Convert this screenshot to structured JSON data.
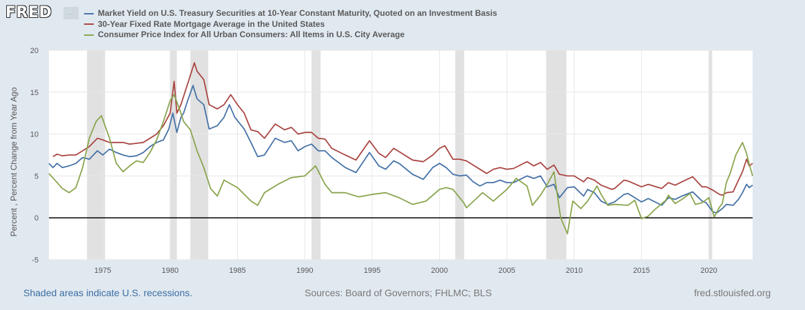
{
  "brand": {
    "logo_text": "FRED"
  },
  "colors": {
    "treasury": "#4572a7",
    "mortgage": "#aa4643",
    "cpi": "#89a54e",
    "recession": "#e1e1e1",
    "background": "#e1e9f0"
  },
  "footer": {
    "recessions_note": "Shaded areas indicate U.S. recessions.",
    "sources": "Sources: Board of Governors; FHLMC; BLS",
    "site": "fred.stlouisfed.org"
  },
  "chart_data": {
    "type": "line",
    "title": "",
    "xlabel": "",
    "ylabel": "Percent , Percent Change from Year Ago",
    "xlim": [
      1971.0,
      2023.25
    ],
    "ylim": [
      -5,
      20
    ],
    "yticks": [
      -5,
      0,
      5,
      10,
      15,
      20
    ],
    "xticks": [
      1975,
      1980,
      1985,
      1990,
      1995,
      2000,
      2005,
      2010,
      2015,
      2020
    ],
    "grid": true,
    "legend_position": "top-left",
    "recessions": [
      [
        1973.83,
        1975.17
      ],
      [
        1980.0,
        1980.5
      ],
      [
        1981.5,
        1982.83
      ],
      [
        1990.5,
        1991.17
      ],
      [
        2001.17,
        2001.83
      ],
      [
        2007.92,
        2009.42
      ],
      [
        2020.0,
        2020.25
      ]
    ],
    "series": [
      {
        "name": "Market Yield on U.S. Treasury Securities at 10-Year Constant Maturity, Quoted on an Investment Basis",
        "color_key": "treasury",
        "points": [
          [
            1971.0,
            6.5
          ],
          [
            1971.3,
            6.0
          ],
          [
            1971.6,
            6.5
          ],
          [
            1972.0,
            6.0
          ],
          [
            1972.5,
            6.2
          ],
          [
            1973.0,
            6.5
          ],
          [
            1973.5,
            7.2
          ],
          [
            1974.0,
            7.0
          ],
          [
            1974.6,
            8.0
          ],
          [
            1975.0,
            7.5
          ],
          [
            1975.5,
            8.2
          ],
          [
            1976.0,
            7.8
          ],
          [
            1976.5,
            7.5
          ],
          [
            1977.0,
            7.3
          ],
          [
            1977.5,
            7.4
          ],
          [
            1978.0,
            7.8
          ],
          [
            1978.5,
            8.5
          ],
          [
            1979.0,
            9.0
          ],
          [
            1979.5,
            9.3
          ],
          [
            1979.9,
            10.6
          ],
          [
            1980.2,
            12.5
          ],
          [
            1980.5,
            10.2
          ],
          [
            1980.8,
            12.0
          ],
          [
            1981.0,
            12.5
          ],
          [
            1981.3,
            14.0
          ],
          [
            1981.7,
            15.8
          ],
          [
            1982.0,
            14.2
          ],
          [
            1982.5,
            13.5
          ],
          [
            1982.9,
            10.6
          ],
          [
            1983.5,
            11.0
          ],
          [
            1984.0,
            12.0
          ],
          [
            1984.4,
            13.5
          ],
          [
            1984.8,
            12.0
          ],
          [
            1985.5,
            10.6
          ],
          [
            1986.0,
            9.0
          ],
          [
            1986.5,
            7.3
          ],
          [
            1987.0,
            7.5
          ],
          [
            1987.8,
            9.5
          ],
          [
            1988.5,
            9.0
          ],
          [
            1989.0,
            9.2
          ],
          [
            1989.5,
            8.0
          ],
          [
            1990.0,
            8.5
          ],
          [
            1990.5,
            8.8
          ],
          [
            1991.0,
            8.0
          ],
          [
            1991.5,
            8.0
          ],
          [
            1992.0,
            7.2
          ],
          [
            1993.0,
            6.0
          ],
          [
            1993.8,
            5.4
          ],
          [
            1994.8,
            7.8
          ],
          [
            1995.5,
            6.2
          ],
          [
            1996.0,
            5.8
          ],
          [
            1996.6,
            6.8
          ],
          [
            1997.0,
            6.5
          ],
          [
            1998.0,
            5.2
          ],
          [
            1998.8,
            4.6
          ],
          [
            1999.5,
            6.0
          ],
          [
            2000.0,
            6.5
          ],
          [
            2000.5,
            6.0
          ],
          [
            2001.0,
            5.2
          ],
          [
            2001.5,
            5.0
          ],
          [
            2002.0,
            5.1
          ],
          [
            2002.5,
            4.3
          ],
          [
            2003.0,
            3.8
          ],
          [
            2003.5,
            4.2
          ],
          [
            2004.0,
            4.2
          ],
          [
            2004.5,
            4.5
          ],
          [
            2005.0,
            4.2
          ],
          [
            2005.5,
            4.2
          ],
          [
            2006.5,
            5.0
          ],
          [
            2007.0,
            4.7
          ],
          [
            2007.5,
            5.0
          ],
          [
            2008.0,
            3.7
          ],
          [
            2008.5,
            4.0
          ],
          [
            2008.9,
            2.4
          ],
          [
            2009.5,
            3.6
          ],
          [
            2010.0,
            3.7
          ],
          [
            2010.7,
            2.6
          ],
          [
            2011.0,
            3.4
          ],
          [
            2011.5,
            3.0
          ],
          [
            2012.0,
            2.0
          ],
          [
            2012.5,
            1.6
          ],
          [
            2013.0,
            1.9
          ],
          [
            2013.7,
            2.8
          ],
          [
            2014.0,
            2.9
          ],
          [
            2015.0,
            1.9
          ],
          [
            2015.5,
            2.3
          ],
          [
            2016.5,
            1.5
          ],
          [
            2017.0,
            2.4
          ],
          [
            2017.5,
            2.2
          ],
          [
            2018.0,
            2.6
          ],
          [
            2018.8,
            3.1
          ],
          [
            2019.5,
            2.0
          ],
          [
            2019.8,
            1.8
          ],
          [
            2020.3,
            0.7
          ],
          [
            2020.6,
            0.6
          ],
          [
            2021.0,
            1.1
          ],
          [
            2021.3,
            1.6
          ],
          [
            2021.8,
            1.5
          ],
          [
            2022.2,
            2.2
          ],
          [
            2022.5,
            3.0
          ],
          [
            2022.8,
            4.0
          ],
          [
            2023.0,
            3.6
          ],
          [
            2023.25,
            3.9
          ]
        ]
      },
      {
        "name": "30-Year Fixed Rate Mortgage Average in the United States",
        "color_key": "mortgage",
        "points": [
          [
            1971.3,
            7.3
          ],
          [
            1971.6,
            7.6
          ],
          [
            1972.0,
            7.4
          ],
          [
            1972.5,
            7.5
          ],
          [
            1973.0,
            7.5
          ],
          [
            1973.5,
            8.0
          ],
          [
            1974.0,
            8.5
          ],
          [
            1974.6,
            9.5
          ],
          [
            1975.0,
            9.3
          ],
          [
            1975.5,
            9.0
          ],
          [
            1976.0,
            9.0
          ],
          [
            1976.5,
            9.0
          ],
          [
            1977.0,
            8.8
          ],
          [
            1977.5,
            8.9
          ],
          [
            1978.0,
            9.0
          ],
          [
            1978.5,
            9.5
          ],
          [
            1979.0,
            10.0
          ],
          [
            1979.5,
            11.0
          ],
          [
            1980.0,
            12.5
          ],
          [
            1980.3,
            16.3
          ],
          [
            1980.5,
            12.5
          ],
          [
            1980.8,
            13.5
          ],
          [
            1981.0,
            14.5
          ],
          [
            1981.4,
            16.5
          ],
          [
            1981.8,
            18.5
          ],
          [
            1982.0,
            17.5
          ],
          [
            1982.5,
            16.5
          ],
          [
            1982.9,
            13.5
          ],
          [
            1983.5,
            13.0
          ],
          [
            1984.0,
            13.5
          ],
          [
            1984.5,
            14.7
          ],
          [
            1985.0,
            13.5
          ],
          [
            1985.5,
            12.5
          ],
          [
            1986.0,
            10.5
          ],
          [
            1986.5,
            10.3
          ],
          [
            1987.0,
            9.5
          ],
          [
            1987.8,
            11.2
          ],
          [
            1988.5,
            10.5
          ],
          [
            1989.0,
            10.8
          ],
          [
            1989.5,
            10.0
          ],
          [
            1990.0,
            10.2
          ],
          [
            1990.5,
            10.2
          ],
          [
            1991.0,
            9.5
          ],
          [
            1991.5,
            9.4
          ],
          [
            1992.0,
            8.3
          ],
          [
            1993.0,
            7.5
          ],
          [
            1993.8,
            6.9
          ],
          [
            1994.8,
            9.2
          ],
          [
            1995.5,
            7.7
          ],
          [
            1996.0,
            7.2
          ],
          [
            1996.6,
            8.3
          ],
          [
            1997.0,
            7.9
          ],
          [
            1998.0,
            6.9
          ],
          [
            1998.8,
            6.7
          ],
          [
            1999.5,
            7.5
          ],
          [
            2000.0,
            8.3
          ],
          [
            2000.4,
            8.6
          ],
          [
            2001.0,
            7.0
          ],
          [
            2001.5,
            7.0
          ],
          [
            2002.0,
            6.8
          ],
          [
            2002.5,
            6.3
          ],
          [
            2003.0,
            5.8
          ],
          [
            2003.5,
            5.3
          ],
          [
            2004.0,
            5.8
          ],
          [
            2004.5,
            6.0
          ],
          [
            2005.0,
            5.8
          ],
          [
            2005.5,
            5.9
          ],
          [
            2006.5,
            6.7
          ],
          [
            2007.0,
            6.2
          ],
          [
            2007.5,
            6.6
          ],
          [
            2008.0,
            5.8
          ],
          [
            2008.5,
            6.3
          ],
          [
            2008.9,
            5.2
          ],
          [
            2009.5,
            5.0
          ],
          [
            2010.0,
            5.0
          ],
          [
            2010.7,
            4.3
          ],
          [
            2011.0,
            4.8
          ],
          [
            2011.5,
            4.5
          ],
          [
            2012.0,
            3.9
          ],
          [
            2012.8,
            3.4
          ],
          [
            2013.0,
            3.5
          ],
          [
            2013.7,
            4.5
          ],
          [
            2014.0,
            4.4
          ],
          [
            2015.0,
            3.7
          ],
          [
            2015.5,
            4.0
          ],
          [
            2016.5,
            3.5
          ],
          [
            2017.0,
            4.2
          ],
          [
            2017.5,
            3.9
          ],
          [
            2018.0,
            4.3
          ],
          [
            2018.8,
            4.9
          ],
          [
            2019.5,
            3.7
          ],
          [
            2019.8,
            3.7
          ],
          [
            2020.3,
            3.3
          ],
          [
            2020.8,
            2.8
          ],
          [
            2021.0,
            2.7
          ],
          [
            2021.3,
            3.0
          ],
          [
            2021.8,
            3.1
          ],
          [
            2022.2,
            4.5
          ],
          [
            2022.5,
            5.5
          ],
          [
            2022.8,
            7.0
          ],
          [
            2023.0,
            6.2
          ],
          [
            2023.25,
            6.5
          ]
        ]
      },
      {
        "name": "Consumer Price Index for All Urban Consumers: All Items in U.S. City Average",
        "color_key": "cpi",
        "points": [
          [
            1971.0,
            5.3
          ],
          [
            1971.5,
            4.4
          ],
          [
            1972.0,
            3.5
          ],
          [
            1972.5,
            3.0
          ],
          [
            1973.0,
            3.6
          ],
          [
            1973.5,
            6.0
          ],
          [
            1974.0,
            9.5
          ],
          [
            1974.5,
            11.5
          ],
          [
            1974.9,
            12.2
          ],
          [
            1975.5,
            9.5
          ],
          [
            1976.0,
            6.5
          ],
          [
            1976.5,
            5.5
          ],
          [
            1977.0,
            6.2
          ],
          [
            1977.5,
            6.8
          ],
          [
            1978.0,
            6.6
          ],
          [
            1978.5,
            7.8
          ],
          [
            1979.0,
            9.3
          ],
          [
            1979.5,
            11.5
          ],
          [
            1980.0,
            14.0
          ],
          [
            1980.3,
            14.7
          ],
          [
            1980.8,
            12.5
          ],
          [
            1981.0,
            11.5
          ],
          [
            1981.5,
            10.5
          ],
          [
            1982.0,
            8.0
          ],
          [
            1982.5,
            6.0
          ],
          [
            1983.0,
            3.5
          ],
          [
            1983.5,
            2.6
          ],
          [
            1984.0,
            4.5
          ],
          [
            1985.0,
            3.6
          ],
          [
            1986.0,
            2.0
          ],
          [
            1986.5,
            1.5
          ],
          [
            1987.0,
            3.0
          ],
          [
            1988.0,
            4.0
          ],
          [
            1989.0,
            4.8
          ],
          [
            1990.0,
            5.0
          ],
          [
            1990.8,
            6.2
          ],
          [
            1991.5,
            4.0
          ],
          [
            1992.0,
            3.0
          ],
          [
            1993.0,
            3.0
          ],
          [
            1994.0,
            2.5
          ],
          [
            1995.0,
            2.8
          ],
          [
            1996.0,
            3.0
          ],
          [
            1997.0,
            2.4
          ],
          [
            1998.0,
            1.6
          ],
          [
            1999.0,
            2.0
          ],
          [
            2000.0,
            3.4
          ],
          [
            2000.5,
            3.6
          ],
          [
            2001.0,
            3.4
          ],
          [
            2001.8,
            1.8
          ],
          [
            2002.0,
            1.2
          ],
          [
            2002.8,
            2.4
          ],
          [
            2003.2,
            3.0
          ],
          [
            2004.0,
            2.0
          ],
          [
            2005.0,
            3.4
          ],
          [
            2005.7,
            4.7
          ],
          [
            2006.5,
            3.8
          ],
          [
            2006.9,
            1.5
          ],
          [
            2007.5,
            2.7
          ],
          [
            2008.0,
            4.0
          ],
          [
            2008.5,
            5.5
          ],
          [
            2009.0,
            0.0
          ],
          [
            2009.5,
            -1.9
          ],
          [
            2009.9,
            2.0
          ],
          [
            2010.5,
            1.1
          ],
          [
            2011.0,
            2.0
          ],
          [
            2011.7,
            3.8
          ],
          [
            2012.0,
            2.8
          ],
          [
            2012.5,
            1.5
          ],
          [
            2013.0,
            1.6
          ],
          [
            2014.0,
            1.5
          ],
          [
            2014.5,
            2.1
          ],
          [
            2015.0,
            -0.1
          ],
          [
            2015.5,
            0.2
          ],
          [
            2016.0,
            1.0
          ],
          [
            2016.8,
            2.1
          ],
          [
            2017.0,
            2.7
          ],
          [
            2017.5,
            1.7
          ],
          [
            2018.0,
            2.2
          ],
          [
            2018.6,
            2.9
          ],
          [
            2019.0,
            1.6
          ],
          [
            2019.5,
            1.8
          ],
          [
            2020.0,
            2.4
          ],
          [
            2020.4,
            0.1
          ],
          [
            2020.8,
            1.3
          ],
          [
            2021.0,
            1.7
          ],
          [
            2021.3,
            4.2
          ],
          [
            2021.6,
            5.4
          ],
          [
            2022.0,
            7.5
          ],
          [
            2022.5,
            9.0
          ],
          [
            2022.8,
            7.7
          ],
          [
            2023.0,
            6.4
          ],
          [
            2023.25,
            5.0
          ]
        ]
      }
    ]
  }
}
